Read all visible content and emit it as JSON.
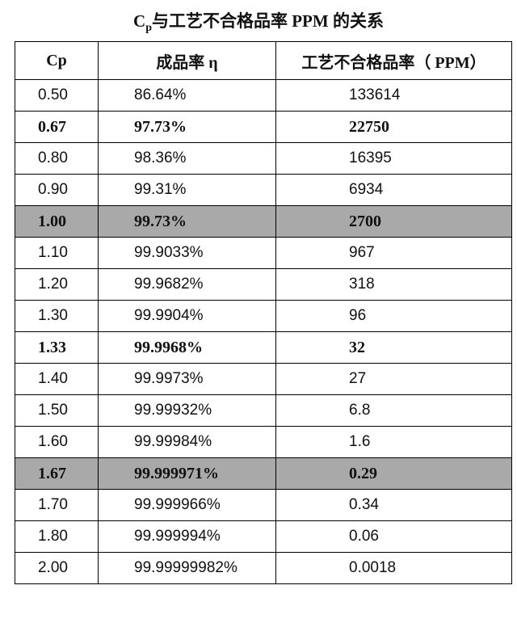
{
  "title": {
    "prefix": "C",
    "subscript": "p",
    "rest": "与工艺不合格品率 PPM 的关系"
  },
  "table": {
    "headers": [
      "Cp",
      "成品率 η",
      "工艺不合格品率（ PPM）"
    ],
    "rows": [
      {
        "cp": "0.50",
        "eta": "86.64%",
        "ppm": "133614",
        "bold": false,
        "shaded": false
      },
      {
        "cp": "0.67",
        "eta": "97.73%",
        "ppm": "22750",
        "bold": true,
        "shaded": false
      },
      {
        "cp": "0.80",
        "eta": "98.36%",
        "ppm": "16395",
        "bold": false,
        "shaded": false
      },
      {
        "cp": "0.90",
        "eta": "99.31%",
        "ppm": "6934",
        "bold": false,
        "shaded": false
      },
      {
        "cp": "1.00",
        "eta": "99.73%",
        "ppm": "2700",
        "bold": true,
        "shaded": true
      },
      {
        "cp": "1.10",
        "eta": "99.9033%",
        "ppm": "967",
        "bold": false,
        "shaded": false
      },
      {
        "cp": "1.20",
        "eta": "99.9682%",
        "ppm": "318",
        "bold": false,
        "shaded": false
      },
      {
        "cp": "1.30",
        "eta": "99.9904%",
        "ppm": "96",
        "bold": false,
        "shaded": false
      },
      {
        "cp": "1.33",
        "eta": "99.9968%",
        "ppm": "32",
        "bold": true,
        "shaded": false
      },
      {
        "cp": "1.40",
        "eta": "99.9973%",
        "ppm": "27",
        "bold": false,
        "shaded": false
      },
      {
        "cp": "1.50",
        "eta": "99.99932%",
        "ppm": "6.8",
        "bold": false,
        "shaded": false
      },
      {
        "cp": "1.60",
        "eta": "99.99984%",
        "ppm": "1.6",
        "bold": false,
        "shaded": false
      },
      {
        "cp": "1.67",
        "eta": "99.999971%",
        "ppm": "0.29",
        "bold": true,
        "shaded": true
      },
      {
        "cp": "1.70",
        "eta": "99.999966%",
        "ppm": "0.34",
        "bold": false,
        "shaded": false
      },
      {
        "cp": "1.80",
        "eta": "99.999994%",
        "ppm": "0.06",
        "bold": false,
        "shaded": false
      },
      {
        "cp": "2.00",
        "eta": "99.99999982%",
        "ppm": "0.0018",
        "bold": false,
        "shaded": false
      }
    ]
  },
  "colors": {
    "shade": "#a9a9a9",
    "border": "#000000"
  }
}
